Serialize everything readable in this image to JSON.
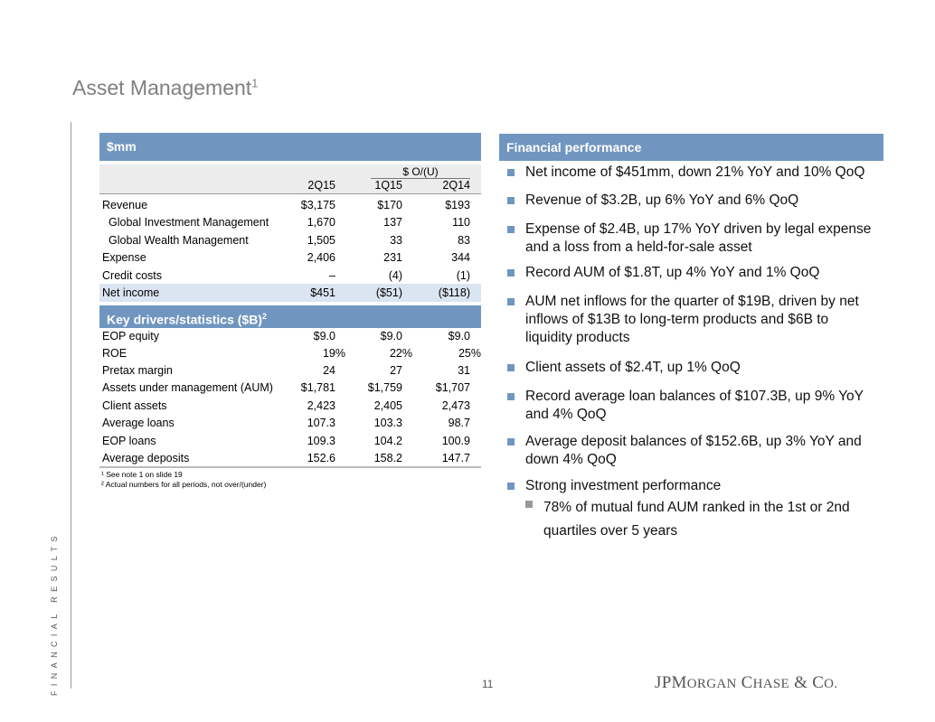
{
  "title": "Asset Management",
  "title_sup": "1",
  "side_label": "FINANCIAL RESULTS",
  "table": {
    "header": "$mm",
    "group_header": "$ O/(U)",
    "columns": [
      "2Q15",
      "1Q15",
      "2Q14"
    ],
    "rows": [
      {
        "label": "Revenue",
        "values": [
          "$3,175",
          "$170",
          "$193"
        ]
      },
      {
        "label": "Global Investment Management",
        "values": [
          "1,670",
          "137",
          "110"
        ]
      },
      {
        "label": "Global Wealth Management",
        "values": [
          "1,505",
          "33",
          "83"
        ]
      },
      {
        "label": "Expense",
        "values": [
          "2,406",
          "231",
          "344"
        ]
      },
      {
        "label": "Credit costs",
        "values": [
          "–",
          "(4)",
          "(1)"
        ]
      },
      {
        "label": "Net income",
        "values": [
          "$451",
          "($51)",
          "($118)"
        ]
      }
    ],
    "drivers_header": "Key drivers/statistics ($B)",
    "drivers_sup": "2",
    "drivers": [
      {
        "label": "EOP equity",
        "values": [
          "$9.0",
          "$9.0",
          "$9.0"
        ]
      },
      {
        "label": "ROE",
        "values": [
          "19%",
          "22%",
          "25%"
        ]
      },
      {
        "label": "Pretax margin",
        "values": [
          "24",
          "27",
          "31"
        ]
      },
      {
        "label": "Assets under management (AUM)",
        "values": [
          "$1,781",
          "$1,759",
          "$1,707"
        ]
      },
      {
        "label": "Client assets",
        "values": [
          "2,423",
          "2,405",
          "2,473"
        ]
      },
      {
        "label": "Average loans",
        "values": [
          "107.3",
          "103.3",
          "98.7"
        ]
      },
      {
        "label": "EOP loans",
        "values": [
          "109.3",
          "104.2",
          "100.9"
        ]
      },
      {
        "label": "Average deposits",
        "values": [
          "152.6",
          "158.2",
          "147.7"
        ]
      }
    ],
    "footnotes": [
      "¹ See note 1 on slide 19",
      "² Actual numbers for all periods, not over/(under)"
    ]
  },
  "performance": {
    "header": "Financial performance",
    "bullets": [
      "Net income of $451mm, down 21% YoY and 10% QoQ",
      "Revenue of $3.2B, up 6% YoY and 6% QoQ",
      "Expense of $2.4B, up 17% YoY driven by legal expense and a loss from a held-for-sale asset",
      "Record AUM of $1.8T, up 4% YoY and 1% QoQ",
      "AUM net inflows for the quarter of $19B, driven by net inflows of $13B to long-term products and $6B to liquidity products",
      "Client assets of $2.4T, up 1% QoQ",
      "Record average loan balances of $107.3B, up 9% YoY and 4% QoQ",
      "Average deposit balances of $152.6B, up 3% YoY and down 4% QoQ",
      "Strong investment performance"
    ],
    "sub_bullets": [
      "78% of mutual fund AUM ranked in the 1st or 2nd quartiles over 5 years"
    ]
  },
  "page_number": "11",
  "logo": "JPMorgan Chase & Co.",
  "colors": {
    "header_bar": "#7096c0",
    "highlight_row": "#dbe5f1",
    "title": "#7f7f7f"
  }
}
